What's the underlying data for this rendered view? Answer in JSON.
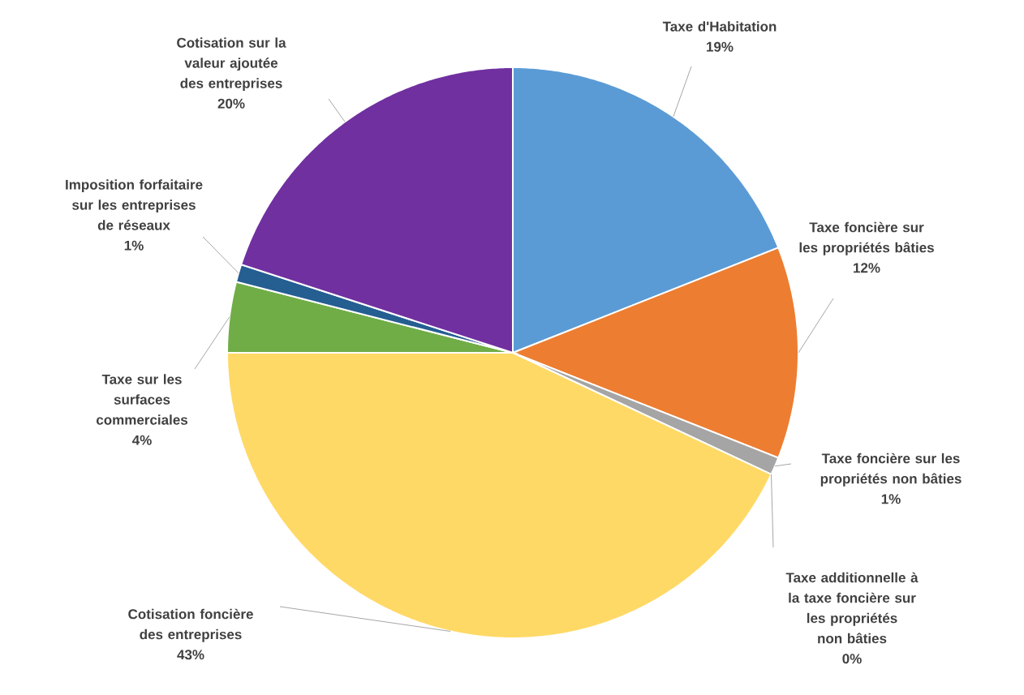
{
  "chart_data": {
    "type": "pie",
    "categories": [
      "Taxe d'Habitation",
      "Taxe foncière sur les propriétés bâties",
      "Taxe foncière sur les propriétés non bâties",
      "Taxe additionnelle à la taxe foncière sur les propriétés non bâties",
      "Cotisation foncière des entreprises",
      "Taxe sur les surfaces commerciales",
      "Imposition forfaitaire sur les entreprises de réseaux",
      "Cotisation sur la valeur ajoutée des entreprises"
    ],
    "values": [
      19,
      12,
      1,
      0,
      43,
      4,
      1,
      20
    ],
    "value_labels": [
      "19%",
      "12%",
      "1%",
      "0%",
      "43%",
      "4%",
      "1%",
      "20%"
    ],
    "colors": [
      "#5b9bd5",
      "#ed7d31",
      "#a5a5a5",
      "#4472c4",
      "#ffd966",
      "#70ad47",
      "#255e91",
      "#7030a0"
    ]
  }
}
